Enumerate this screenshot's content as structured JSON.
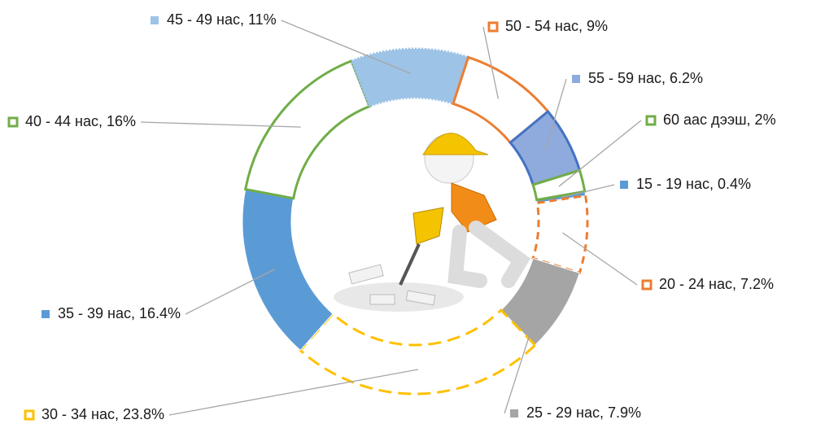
{
  "chart_data": {
    "type": "doughnut",
    "categories": [
      "15 - 19 нас, 0.4%",
      "20 - 24 нас, 7.2%",
      "25 - 29 нас, 7.9%",
      "30 - 34 нас, 23.8%",
      "35 - 39 нас, 16.4%",
      "40 - 44 нас, 16%",
      "45 - 49 нас, 11%",
      "50 - 54 нас, 9%",
      "55 - 59 нас, 6.2%",
      "60 аас дээш,  2%"
    ],
    "values": [
      0.4,
      7.2,
      7.9,
      23.8,
      16.4,
      16,
      11,
      9,
      6.2,
      2
    ],
    "colors": [
      "#5b9bd5",
      "#ed7d31",
      "#a5a5a5",
      "#ffc000",
      "#5b9bd5",
      "#70ad47",
      "#9dc3e6",
      "#ed7d31",
      "#4472c4",
      "#70ad47"
    ]
  }
}
